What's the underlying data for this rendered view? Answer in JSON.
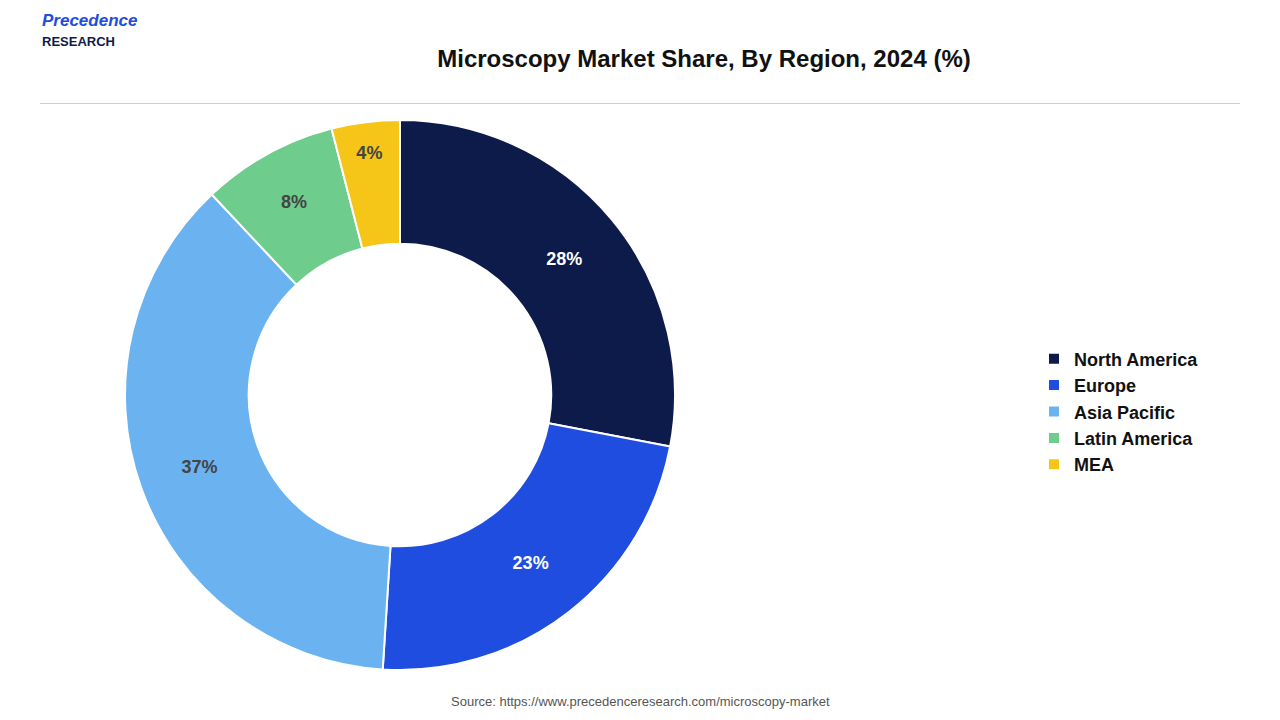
{
  "chart_data": {
    "type": "donut",
    "title": "Microscopy Market Share, By Region, 2024 (%)",
    "categories": [
      "North America",
      "Europe",
      "Asia Pacific",
      "Latin America",
      "MEA"
    ],
    "values": [
      28,
      23,
      37,
      8,
      4
    ],
    "value_labels": [
      "28%",
      "23%",
      "37%",
      "8%",
      "4%"
    ],
    "colors": [
      "#0d1b4b",
      "#1f4de0",
      "#6bb3f0",
      "#6ecc8c",
      "#f5c518"
    ],
    "data_labels": true,
    "legend": "right",
    "annotations": [
      "Precedence",
      "RESEARCH",
      "Source: https://www.precedenceresearch.com/microscopy-market"
    ]
  }
}
